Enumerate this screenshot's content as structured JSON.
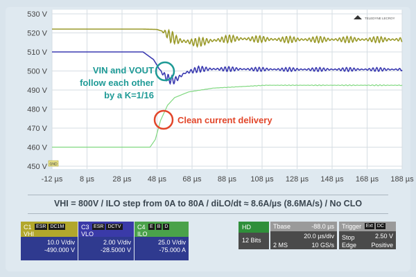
{
  "chart_data": {
    "type": "line",
    "y_ticks": [
      "530 V",
      "520 V",
      "510 V",
      "500 V",
      "490 V",
      "480 V",
      "470 V",
      "460 V",
      "450 V"
    ],
    "x_ticks": [
      "-12 µs",
      "8 µs",
      "28 µs",
      "48 µs",
      "68 µs",
      "88 µs",
      "108 µs",
      "128 µs",
      "148 µs",
      "168 µs",
      "188 µs"
    ],
    "ylim": [
      450,
      530
    ],
    "xlim": [
      -12,
      188
    ],
    "grid": true,
    "series": [
      {
        "color": "#9a9a2a",
        "x": [
          -12,
          40,
          48,
          52,
          56,
          60,
          70,
          90,
          120,
          188
        ],
        "y": [
          522,
          522,
          521.8,
          520.5,
          518,
          516,
          515,
          517,
          516.5,
          516.5
        ]
      },
      {
        "color": "#3a3ab0",
        "x": [
          -12,
          40,
          46,
          50,
          54,
          58,
          64,
          72,
          90,
          120,
          188
        ],
        "y": [
          510,
          510,
          506,
          500,
          496,
          495,
          499,
          501,
          501,
          500.8,
          500.8
        ]
      },
      {
        "color": "#7fd87f",
        "x": [
          -12,
          44,
          47,
          50,
          54,
          58,
          66,
          80,
          110,
          188
        ],
        "y": [
          460,
          460,
          464,
          474,
          482,
          486,
          489,
          491,
          492.5,
          492.5
        ]
      }
    ],
    "annotations": [
      {
        "lines": [
          "VIN and VOUT",
          "follow each other",
          "by a K=1/16"
        ],
        "color": "#1e9a96"
      },
      {
        "lines": [
          "Clean current delivery"
        ],
        "color": "#e2462a"
      }
    ]
  },
  "ground_marker": "GND",
  "logo_text": "TELEDYNE LECROY",
  "caption": "VHI = 800V  /  ILO step from 0A to 80A  /  diLO/dt ≈ 8.6A/µs (8.6MA/s)  /  No CLO",
  "channels": [
    {
      "id": "C1",
      "name": "VHI",
      "badges": [
        "ESR",
        "DC1M"
      ],
      "vdiv": "10.0 V/div",
      "offset": "-490.000 V",
      "head_color": "#b2a72c",
      "body_color": "#2f3a8f"
    },
    {
      "id": "C3",
      "name": "VLO",
      "badges": [
        "ESR",
        "DCTV"
      ],
      "vdiv": "2.00 V/div",
      "offset": "-28.5000 V",
      "head_color": "#3a3aa8",
      "body_color": "#2f3a8f"
    },
    {
      "id": "C4",
      "name": "ILO",
      "badges": [
        "E",
        "B",
        "D"
      ],
      "vdiv": "25.0 V/div",
      "offset": "-75.000 A",
      "head_color": "#4aa24a",
      "body_color": "#2f3a8f"
    }
  ],
  "hd_box": {
    "label": "HD",
    "bits": "12 Bits",
    "color": "#2f8f3a"
  },
  "timebase": {
    "label": "Tbase",
    "value": "-88.0 µs",
    "div": "20.0 µs/div",
    "ms": "2 MS",
    "rate": "10 GS/s"
  },
  "trigger": {
    "label": "Trigger",
    "badges": [
      "Ext",
      "DC"
    ],
    "value": "2.50 V",
    "mode": "Stop",
    "edge": "Edge",
    "slope": "Positive"
  }
}
